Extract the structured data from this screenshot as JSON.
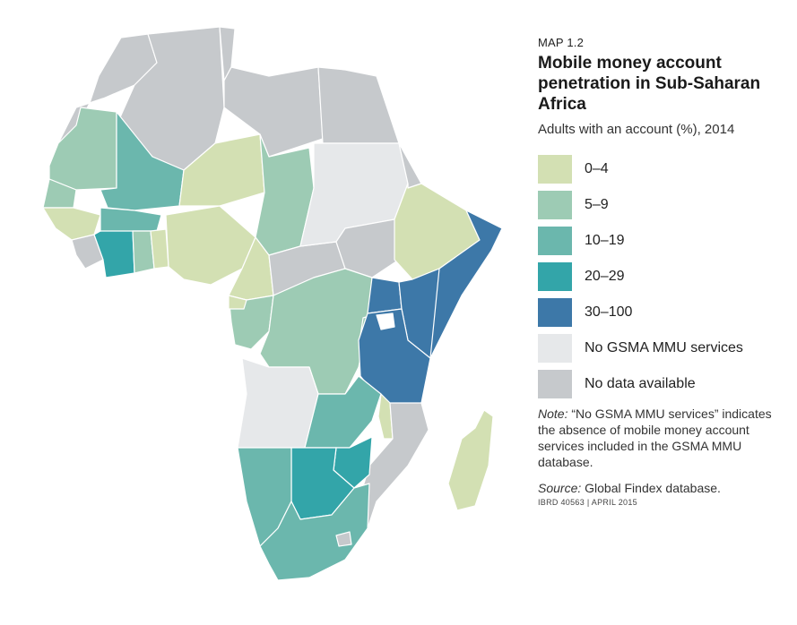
{
  "map": {
    "label": "MAP 1.2",
    "title": "Mobile money account penetration in Sub-Saharan Africa",
    "subtitle": "Adults with an account (%), 2014"
  },
  "legend": [
    {
      "label": "0–4",
      "color": "#d3e0b3"
    },
    {
      "label": "5–9",
      "color": "#9dcbb4"
    },
    {
      "label": "10–19",
      "color": "#6bb7ad"
    },
    {
      "label": "20–29",
      "color": "#33a5a9"
    },
    {
      "label": "30–100",
      "color": "#3d78a8"
    },
    {
      "label": "No GSMA MMU services",
      "color": "#e6e8ea"
    },
    {
      "label": "No data available",
      "color": "#c6c9cc"
    }
  ],
  "note": {
    "prefix": "Note:",
    "text": "“No GSMA MMU services” indicates the absence of mobile money account services included in the GSMA MMU database."
  },
  "source": {
    "prefix": "Source:",
    "text": "Global Findex database."
  },
  "credit": "IBRD 40563  |  APRIL 2015"
}
